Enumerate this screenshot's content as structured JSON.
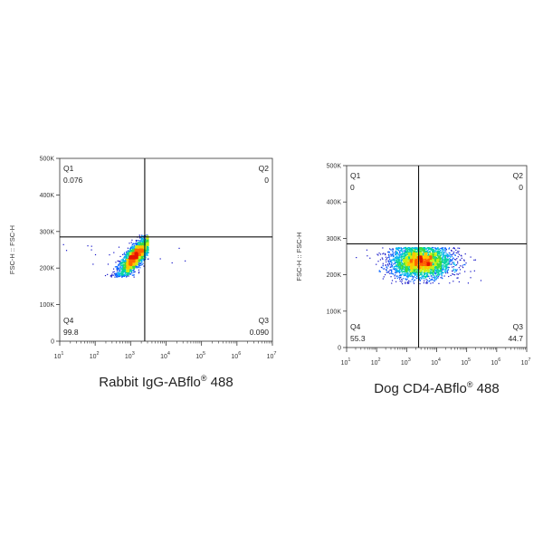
{
  "chart_data": [
    {
      "type": "scatter",
      "plot_kind": "flow cytometry density dot plot with quadrant gate",
      "xlabel": "Rabbit IgG-ABflo",
      "xlabel_mark": "®",
      "xlabel_suffix": " 488",
      "ylabel": "FSC-H :: FSC-H",
      "x_scale": "log",
      "xlim": [
        10,
        10000000
      ],
      "x_ticks": [
        {
          "base": "10",
          "exp": "1"
        },
        {
          "base": "10",
          "exp": "2"
        },
        {
          "base": "10",
          "exp": "3"
        },
        {
          "base": "10",
          "exp": "4"
        },
        {
          "base": "10",
          "exp": "5"
        },
        {
          "base": "10",
          "exp": "6"
        },
        {
          "base": "10",
          "exp": "7"
        }
      ],
      "ylim": [
        0,
        500000
      ],
      "y_ticks": [
        "0",
        "100K",
        "200K",
        "300K",
        "400K",
        "500K"
      ],
      "gate": {
        "x": 2500,
        "y": 285000
      },
      "quadrants": [
        {
          "name": "Q1",
          "value": "0.076",
          "position": "top-left"
        },
        {
          "name": "Q2",
          "value": "0",
          "position": "top-right"
        },
        {
          "name": "Q3",
          "value": "0.090",
          "position": "bottom-right"
        },
        {
          "name": "Q4",
          "value": "99.8",
          "position": "bottom-left"
        }
      ],
      "population": {
        "x_center": 1300,
        "x_spread_decades": 0.22,
        "y_center": 230000,
        "y_spread": 26000,
        "y_max": 290000,
        "y_min": 175000,
        "tilt": "diagonal"
      }
    },
    {
      "type": "scatter",
      "plot_kind": "flow cytometry density dot plot with quadrant gate",
      "xlabel": "Dog CD4-ABflo",
      "xlabel_mark": "®",
      "xlabel_suffix": " 488",
      "ylabel": "FSC-H :: FSC-H",
      "x_scale": "log",
      "xlim": [
        10,
        10000000
      ],
      "x_ticks": [
        {
          "base": "10",
          "exp": "1"
        },
        {
          "base": "10",
          "exp": "2"
        },
        {
          "base": "10",
          "exp": "3"
        },
        {
          "base": "10",
          "exp": "4"
        },
        {
          "base": "10",
          "exp": "5"
        },
        {
          "base": "10",
          "exp": "6"
        },
        {
          "base": "10",
          "exp": "7"
        }
      ],
      "ylim": [
        0,
        500000
      ],
      "y_ticks": [
        "0",
        "100K",
        "200K",
        "300K",
        "400K",
        "500K"
      ],
      "gate": {
        "x": 2500,
        "y": 285000
      },
      "quadrants": [
        {
          "name": "Q1",
          "value": "0",
          "position": "top-left"
        },
        {
          "name": "Q2",
          "value": "0",
          "position": "top-right"
        },
        {
          "name": "Q3",
          "value": "44.7",
          "position": "bottom-right"
        },
        {
          "name": "Q4",
          "value": "55.3",
          "position": "bottom-left"
        }
      ],
      "population": {
        "x_center": 3000,
        "x_spread_decades": 0.5,
        "y_center": 235000,
        "y_spread": 22000,
        "y_max": 275000,
        "y_min": 175000,
        "tilt": "horizontal"
      }
    }
  ],
  "colors": {
    "axis": "#333333",
    "gate": "#111111",
    "density": [
      "#1414c8",
      "#0a64ff",
      "#00b4f0",
      "#00d2a0",
      "#3cdc3c",
      "#c8f014",
      "#ffc800",
      "#ff6400",
      "#e61400"
    ]
  }
}
